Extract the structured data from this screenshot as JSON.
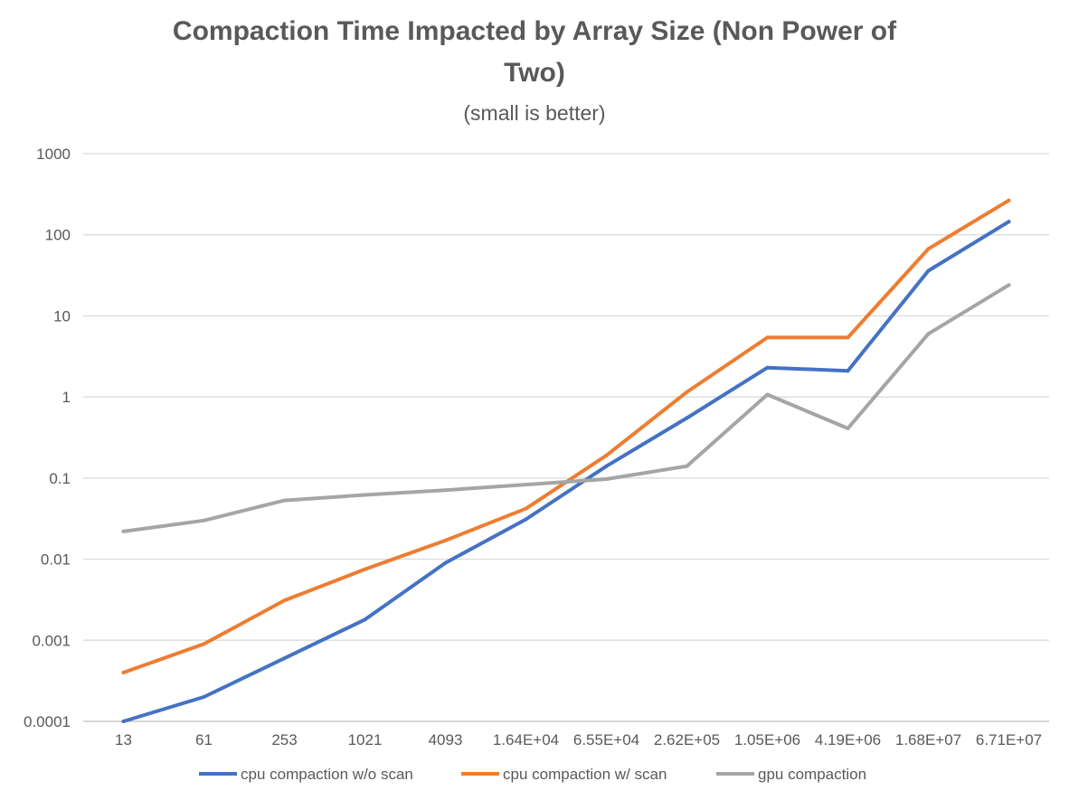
{
  "chart_data": {
    "type": "line",
    "title_line1": "Compaction Time Impacted by Array Size (Non Power of",
    "title_line2": "Two)",
    "subtitle": "(small is better)",
    "xlabel": "",
    "ylabel": "",
    "yscale": "log",
    "ylim": [
      0.0001,
      1000
    ],
    "yticks": [
      "0.0001",
      "0.001",
      "0.01",
      "0.1",
      "1",
      "10",
      "100",
      "1000"
    ],
    "ytick_values": [
      0.0001,
      0.001,
      0.01,
      0.1,
      1,
      10,
      100,
      1000
    ],
    "categories": [
      "13",
      "61",
      "253",
      "1021",
      "4093",
      "1.64E+04",
      "6.55E+04",
      "2.62E+05",
      "1.05E+06",
      "4.19E+06",
      "1.68E+07",
      "6.71E+07"
    ],
    "grid": true,
    "legend_position": "bottom",
    "series": [
      {
        "name": "cpu compaction w/o scan",
        "color": "#4472C4",
        "values": [
          0.0001,
          0.0002,
          0.0006,
          0.0018,
          0.009,
          0.031,
          0.14,
          0.55,
          2.3,
          2.1,
          36,
          145
        ]
      },
      {
        "name": "cpu compaction w/ scan",
        "color": "#ED7D31",
        "values": [
          0.0004,
          0.0009,
          0.0031,
          0.0075,
          0.017,
          0.042,
          0.19,
          1.15,
          5.4,
          5.4,
          67,
          265
        ]
      },
      {
        "name": "gpu compaction",
        "color": "#A5A5A5",
        "values": [
          0.022,
          0.03,
          0.053,
          0.062,
          0.071,
          0.083,
          0.097,
          0.14,
          1.07,
          0.41,
          6,
          24
        ]
      }
    ]
  }
}
